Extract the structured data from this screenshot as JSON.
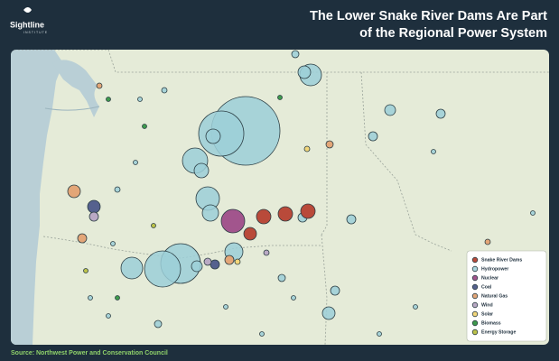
{
  "logo": {
    "name": "Sightline",
    "subtitle": "INSTITUTE"
  },
  "title": [
    "The Lower Snake River Dams Are Part",
    "of the Regional Power System"
  ],
  "legend": [
    "Snake River Dams",
    "Hydropower",
    "Nuclear",
    "Coal",
    "Natural Gas",
    "Wind",
    "Solar",
    "Biomass",
    "Energy Storage"
  ],
  "source": "Source: Northwest Power and Conservation Council"
}
